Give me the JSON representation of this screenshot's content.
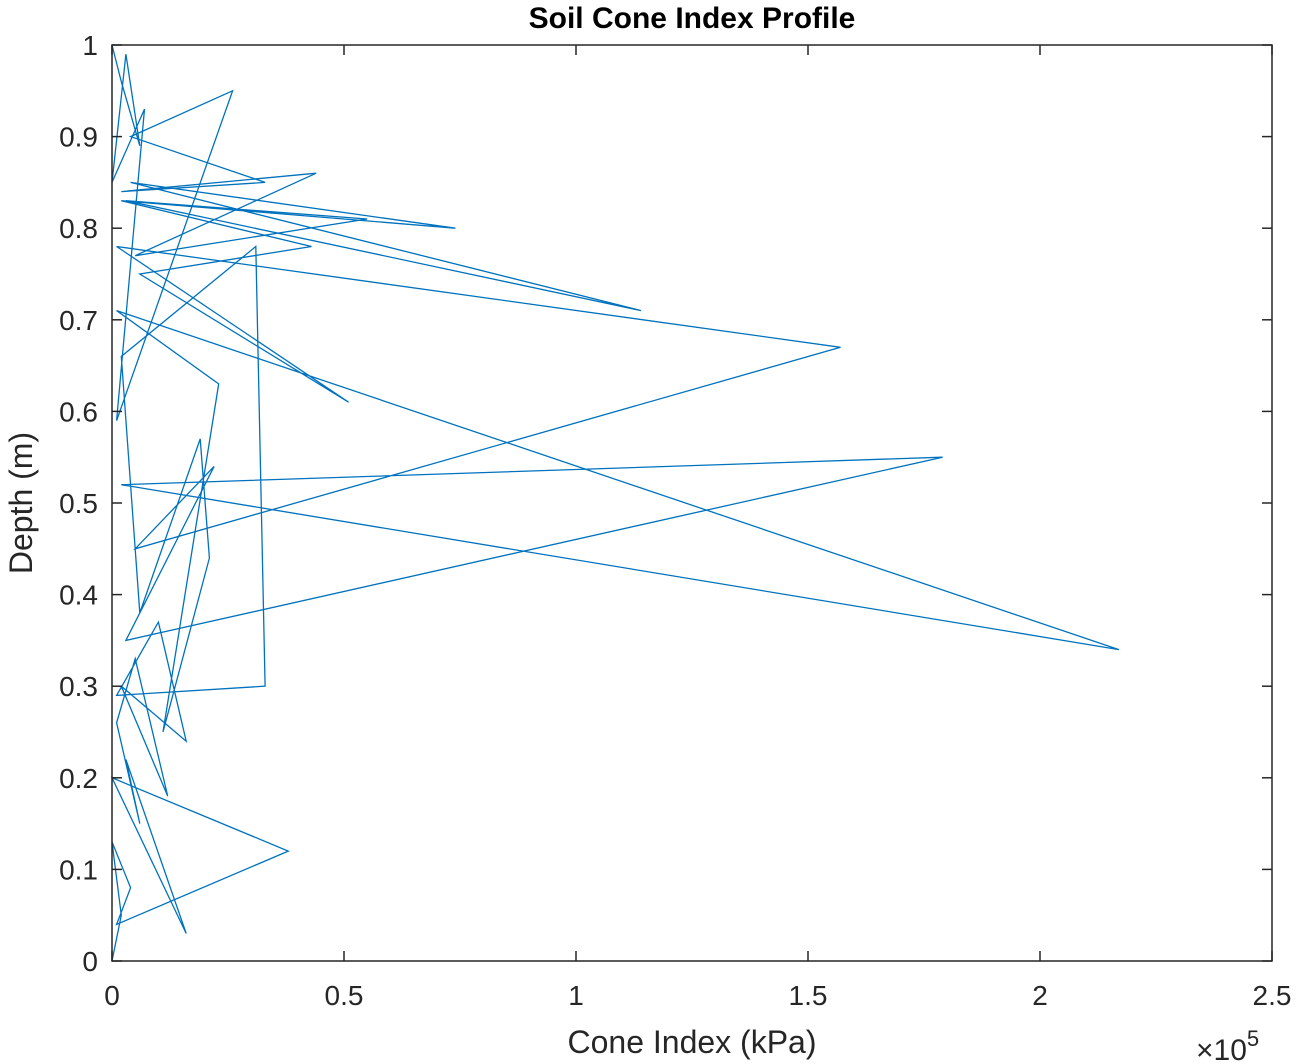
{
  "chart_data": {
    "type": "line",
    "title": "Soil Cone Index Profile",
    "xlabel": "Cone Index (kPa)",
    "ylabel": "Depth (m)",
    "x_exponent_base": "×10",
    "x_exponent_power": "5",
    "x_scale": 100000,
    "xlim": [
      0,
      2.5
    ],
    "ylim": [
      0,
      1
    ],
    "x_ticks": [
      "0",
      "0.5",
      "1",
      "1.5",
      "2",
      "2.5"
    ],
    "y_ticks": [
      "0",
      "0.1",
      "0.2",
      "0.3",
      "0.4",
      "0.5",
      "0.6",
      "0.7",
      "0.8",
      "0.9",
      "1"
    ],
    "grid": false,
    "line_color": "#0072BD",
    "series": [
      {
        "x": [
          0.0,
          0.02,
          0.0,
          0.04,
          0.01,
          0.38,
          0.0,
          0.16,
          0.03,
          0.06,
          0.01,
          0.05,
          0.12,
          0.02,
          0.16,
          0.1,
          0.01,
          0.33,
          0.31,
          0.02,
          0.06,
          0.19,
          0.21,
          0.11,
          0.23,
          0.01,
          2.17,
          0.02,
          1.79,
          0.03,
          0.22,
          0.05,
          1.57,
          0.01,
          0.51,
          0.06,
          0.43,
          0.02,
          0.74,
          0.04,
          1.14,
          0.03,
          0.55,
          0.05,
          0.44,
          0.02,
          0.33,
          0.04,
          0.26,
          0.01,
          0.07,
          0.0,
          0.03,
          0.06,
          0.02,
          0.0
        ],
        "y": [
          0.0,
          0.05,
          0.13,
          0.08,
          0.04,
          0.12,
          0.2,
          0.03,
          0.22,
          0.15,
          0.26,
          0.33,
          0.18,
          0.3,
          0.24,
          0.37,
          0.29,
          0.3,
          0.78,
          0.66,
          0.38,
          0.57,
          0.44,
          0.25,
          0.63,
          0.71,
          0.34,
          0.52,
          0.55,
          0.35,
          0.54,
          0.45,
          0.67,
          0.78,
          0.61,
          0.75,
          0.78,
          0.83,
          0.8,
          0.85,
          0.71,
          0.83,
          0.81,
          0.77,
          0.86,
          0.84,
          0.85,
          0.9,
          0.95,
          0.59,
          0.93,
          0.85,
          0.99,
          0.89,
          0.96,
          1.0
        ]
      }
    ]
  }
}
